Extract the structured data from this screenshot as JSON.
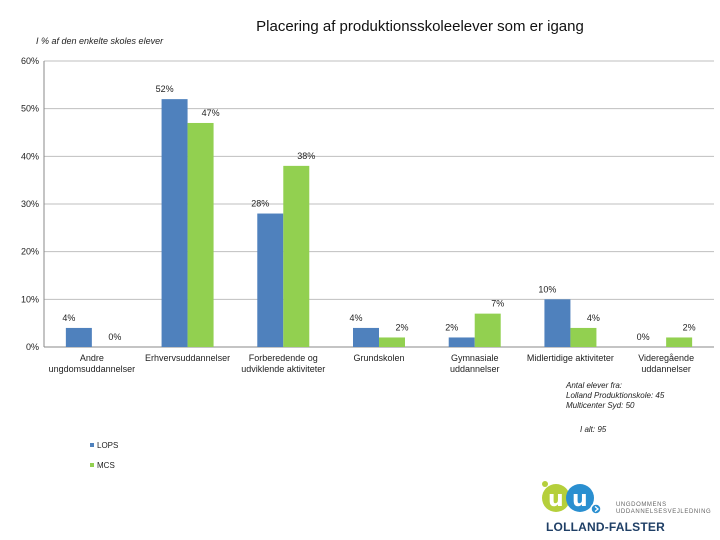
{
  "chart_data": {
    "type": "bar",
    "title": "Placering af produktionsskoleelever som er igang",
    "subtitle": "I % af den enkelte skoles elever",
    "categories": [
      [
        "Andre",
        "ungdomsuddannelser"
      ],
      [
        "Erhvervsuddannelser"
      ],
      [
        "Forberedende og",
        "udviklende aktiviteter"
      ],
      [
        "Grundskolen"
      ],
      [
        "Gymnasiale",
        "uddannelser"
      ],
      [
        "Midlertidige aktiviteter"
      ],
      [
        "Videregående",
        "uddannelser"
      ]
    ],
    "series": [
      {
        "name": "LOPS",
        "color": "#4f81bd",
        "values": [
          4,
          52,
          28,
          4,
          2,
          10,
          0
        ],
        "labels": [
          "4%",
          "52%",
          "28%",
          "4%",
          "2%",
          "10%",
          "0%"
        ]
      },
      {
        "name": "MCS",
        "color": "#92d050",
        "values": [
          0,
          47,
          38,
          2,
          7,
          4,
          2
        ],
        "labels": [
          "0%",
          "47%",
          "38%",
          "2%",
          "7%",
          "4%",
          "2%"
        ]
      }
    ],
    "ylim": [
      0,
      60
    ],
    "yticks": [
      0,
      10,
      20,
      30,
      40,
      50,
      60
    ],
    "ytick_labels": [
      "0%",
      "10%",
      "20%",
      "30%",
      "40%",
      "50%",
      "60%"
    ],
    "grid": true,
    "legend": "bottom-left"
  },
  "note": {
    "line1": "Antal elever fra:",
    "line2": "Lolland Produktionskole: 45",
    "line3": "Multicenter Syd: 50",
    "total": "I alt: 95"
  },
  "logo": {
    "line1": "UNGDOMMENS",
    "line2": "UDDANNELSESVEJLEDNING",
    "line3": "LOLLAND-FALSTER",
    "letters": "uu"
  }
}
